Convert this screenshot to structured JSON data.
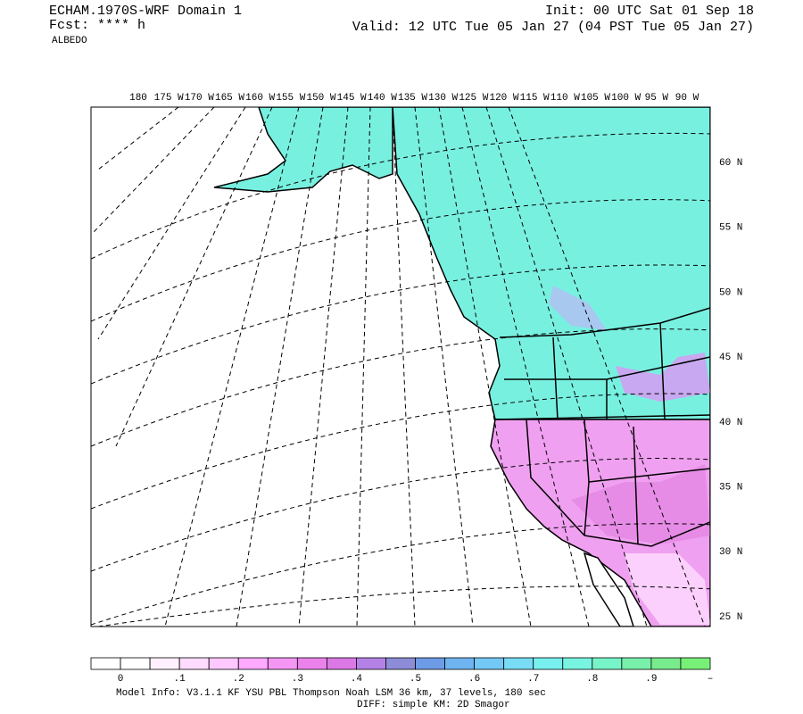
{
  "header": {
    "left_lines": [
      "ECHAM.1970S-WRF Domain 1",
      "Fcst: **** h",
      "ALBEDO"
    ],
    "right_lines": [
      "Init: 00 UTC Sat 01 Sep 18",
      "Valid: 12 UTC Tue 05 Jan 27 (04 PST Tue 05 Jan 27)"
    ]
  },
  "map": {
    "lon_labels": [
      "180",
      "175 W",
      "170 W",
      "165 W",
      "160 W",
      "155 W",
      "150 W",
      "145 W",
      "140 W",
      "135 W",
      "130 W",
      "125 W",
      "120 W",
      "115 W",
      "110 W",
      "105 W",
      "100 W",
      "95 W",
      "90 W"
    ],
    "lat_labels": [
      "60 N",
      "55 N",
      "50 N",
      "45 N",
      "40 N",
      "35 N",
      "30 N",
      "25 N"
    ]
  },
  "colorbar": {
    "colors": [
      "#ffffff",
      "#ffffff",
      "#fff0ff",
      "#ffdcff",
      "#ffc8ff",
      "#ffaaff",
      "#f596f5",
      "#eb82eb",
      "#dc78e6",
      "#b482e6",
      "#8c8cd7",
      "#6e9be6",
      "#6eb4f0",
      "#73c8f5",
      "#78dcf5",
      "#78f0f0",
      "#78f5e1",
      "#78f5c8",
      "#78f0aa",
      "#78eb8c",
      "#78f078"
    ],
    "labels": [
      "0",
      ".1",
      ".2",
      ".3",
      ".4",
      ".5",
      ".6",
      ".7",
      ".8",
      ".9",
      "–"
    ]
  },
  "footer": {
    "lines": [
      "Model Info: V3.1.1   KF      YSU PBL  Thompson    Noah LSM  36 km,   37 levels,  180 sec",
      "DIFF: simple KM: 2D Smagor"
    ]
  }
}
